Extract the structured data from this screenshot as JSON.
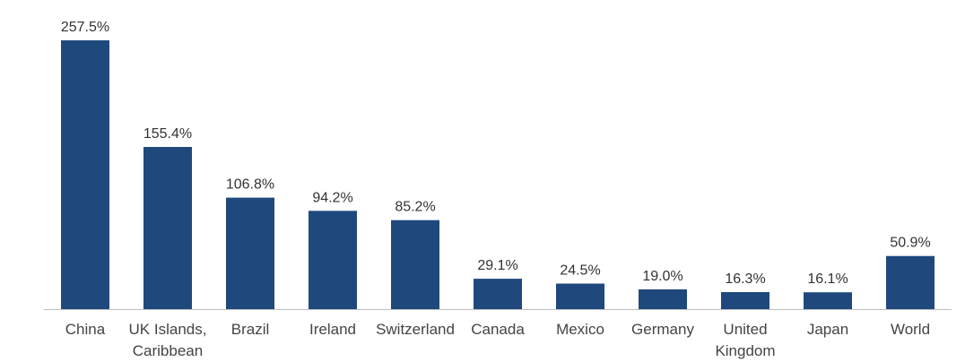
{
  "chart_data": {
    "type": "bar",
    "title": "",
    "xlabel": "",
    "ylabel": "",
    "categories": [
      [
        "China"
      ],
      [
        "UK Islands,",
        "Caribbean"
      ],
      [
        "Brazil"
      ],
      [
        "Ireland"
      ],
      [
        "Switzerland"
      ],
      [
        "Canada"
      ],
      [
        "Mexico"
      ],
      [
        "Germany"
      ],
      [
        "United",
        "Kingdom"
      ],
      [
        "Japan"
      ],
      [
        "World"
      ]
    ],
    "values": [
      257.5,
      155.4,
      106.8,
      94.2,
      85.2,
      29.1,
      24.5,
      19.0,
      16.3,
      16.1,
      50.9
    ],
    "value_labels": [
      "257.5%",
      "155.4%",
      "106.8%",
      "94.2%",
      "85.2%",
      "29.1%",
      "24.5%",
      "19.0%",
      "16.3%",
      "16.1%",
      "50.9%"
    ],
    "ylim": [
      0,
      257.5
    ],
    "grid": false,
    "legend": "none",
    "colors": {
      "bar": "#1f497d",
      "axis": "#bfbfbf"
    }
  }
}
